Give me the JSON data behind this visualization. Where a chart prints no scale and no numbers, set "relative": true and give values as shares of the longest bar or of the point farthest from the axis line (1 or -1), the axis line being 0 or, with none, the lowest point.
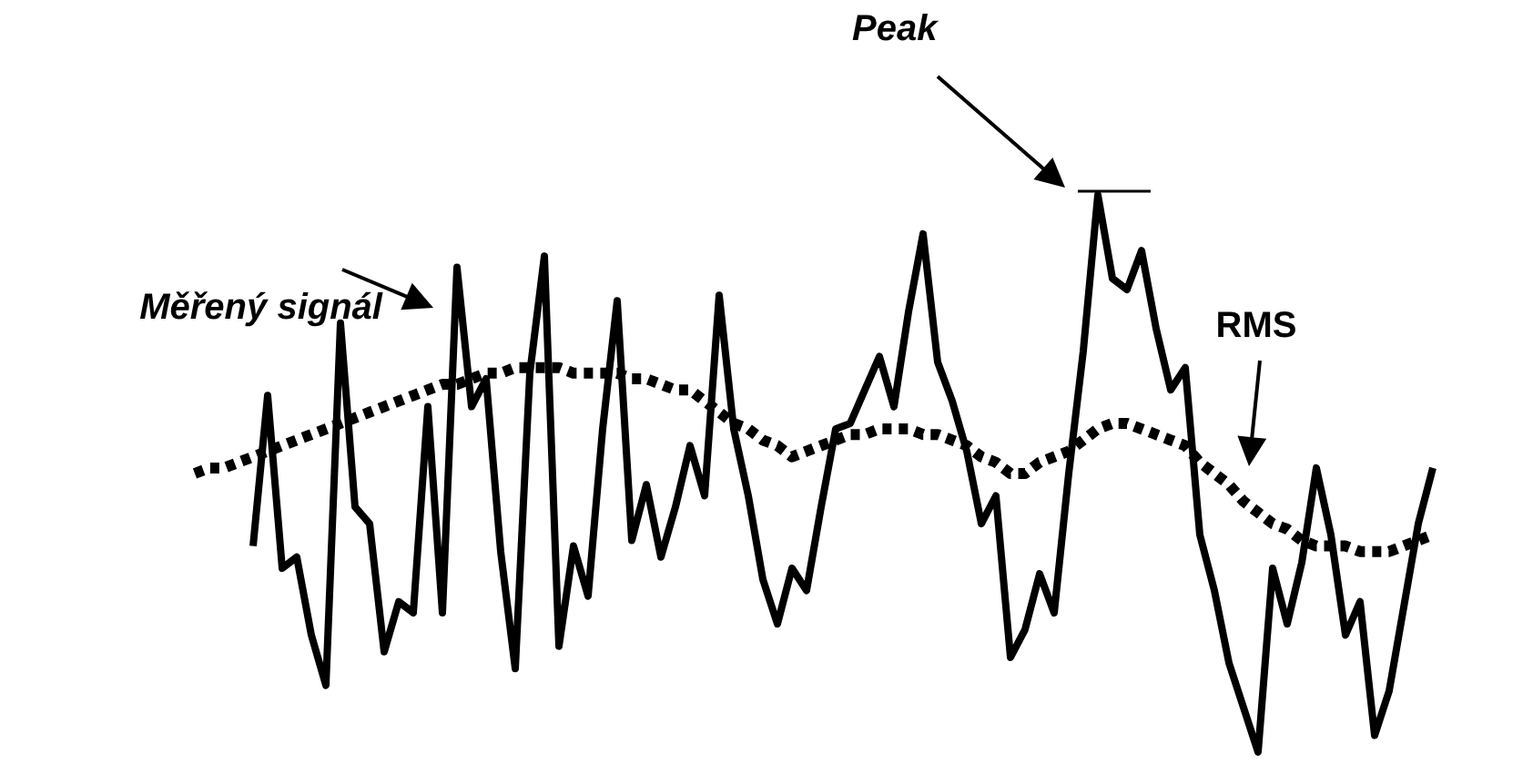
{
  "chart_data": {
    "type": "line",
    "relative": true,
    "categories": [
      null,
      null,
      null,
      null,
      null,
      null,
      null,
      null,
      null,
      null,
      null,
      null,
      null,
      null,
      null,
      null,
      null,
      null,
      null,
      null,
      null,
      null,
      null,
      null,
      null,
      null,
      null,
      null,
      null,
      null,
      null,
      null,
      null,
      null,
      null,
      null,
      null,
      null,
      null,
      null,
      null,
      null,
      null,
      null,
      null,
      null,
      null,
      null,
      null,
      null,
      null,
      null,
      null,
      null,
      null,
      null,
      null,
      null,
      null,
      null,
      null,
      null,
      null,
      null,
      null,
      null,
      null,
      null,
      null,
      null,
      null,
      null,
      null,
      null,
      null,
      null,
      null,
      null,
      null,
      null,
      null,
      null,
      null,
      null,
      null,
      null
    ],
    "series": [
      {
        "color": "#000000",
        "line_style": "solid",
        "values": [
          null,
          null,
          null,
          null,
          0.37,
          0.64,
          0.33,
          0.35,
          0.21,
          0.12,
          0.77,
          0.44,
          0.41,
          0.18,
          0.27,
          0.25,
          0.62,
          0.25,
          0.87,
          0.62,
          0.67,
          0.36,
          0.15,
          0.68,
          0.89,
          0.19,
          0.37,
          0.28,
          0.58,
          0.81,
          0.38,
          0.48,
          0.35,
          0.44,
          0.55,
          0.46,
          0.82,
          0.58,
          0.46,
          0.31,
          0.23,
          0.33,
          0.29,
          0.44,
          0.58,
          0.59,
          0.65,
          0.71,
          0.62,
          0.79,
          0.93,
          0.7,
          0.63,
          0.54,
          0.41,
          0.46,
          0.17,
          0.22,
          0.32,
          0.25,
          0.5,
          0.72,
          1,
          0.85,
          0.83,
          0.9,
          0.76,
          0.65,
          0.69,
          0.39,
          0.29,
          0.16,
          0.08,
          0,
          0.33,
          0.23,
          0.34,
          0.51,
          0.39,
          0.21,
          0.27,
          0.03,
          0.11,
          0.26,
          0.41,
          0.51
        ]
      },
      {
        "color": "#000000",
        "line_style": "dotted",
        "values": [
          0.5,
          0.51,
          0.51,
          0.52,
          0.53,
          0.54,
          0.55,
          0.56,
          0.57,
          0.58,
          0.59,
          0.6,
          0.61,
          0.62,
          0.63,
          0.64,
          0.65,
          0.66,
          0.66,
          0.67,
          0.68,
          0.68,
          0.69,
          0.69,
          0.69,
          0.69,
          0.68,
          0.68,
          0.68,
          0.68,
          0.67,
          0.67,
          0.66,
          0.65,
          0.65,
          0.63,
          0.61,
          0.59,
          0.58,
          0.56,
          0.55,
          0.53,
          0.54,
          0.55,
          0.56,
          0.57,
          0.57,
          0.58,
          0.58,
          0.58,
          0.57,
          0.57,
          0.56,
          0.55,
          0.53,
          0.52,
          0.5,
          0.5,
          0.52,
          0.53,
          0.54,
          0.56,
          0.58,
          0.59,
          0.59,
          0.58,
          0.57,
          0.56,
          0.55,
          0.52,
          0.5,
          0.48,
          0.45,
          0.43,
          0.41,
          0.4,
          0.38,
          0.37,
          0.37,
          0.37,
          0.36,
          0.36,
          0.36,
          0.37,
          0.38,
          0.39
        ]
      }
    ],
    "annotations": [
      "Měřený signál",
      "Peak",
      "RMS"
    ]
  }
}
